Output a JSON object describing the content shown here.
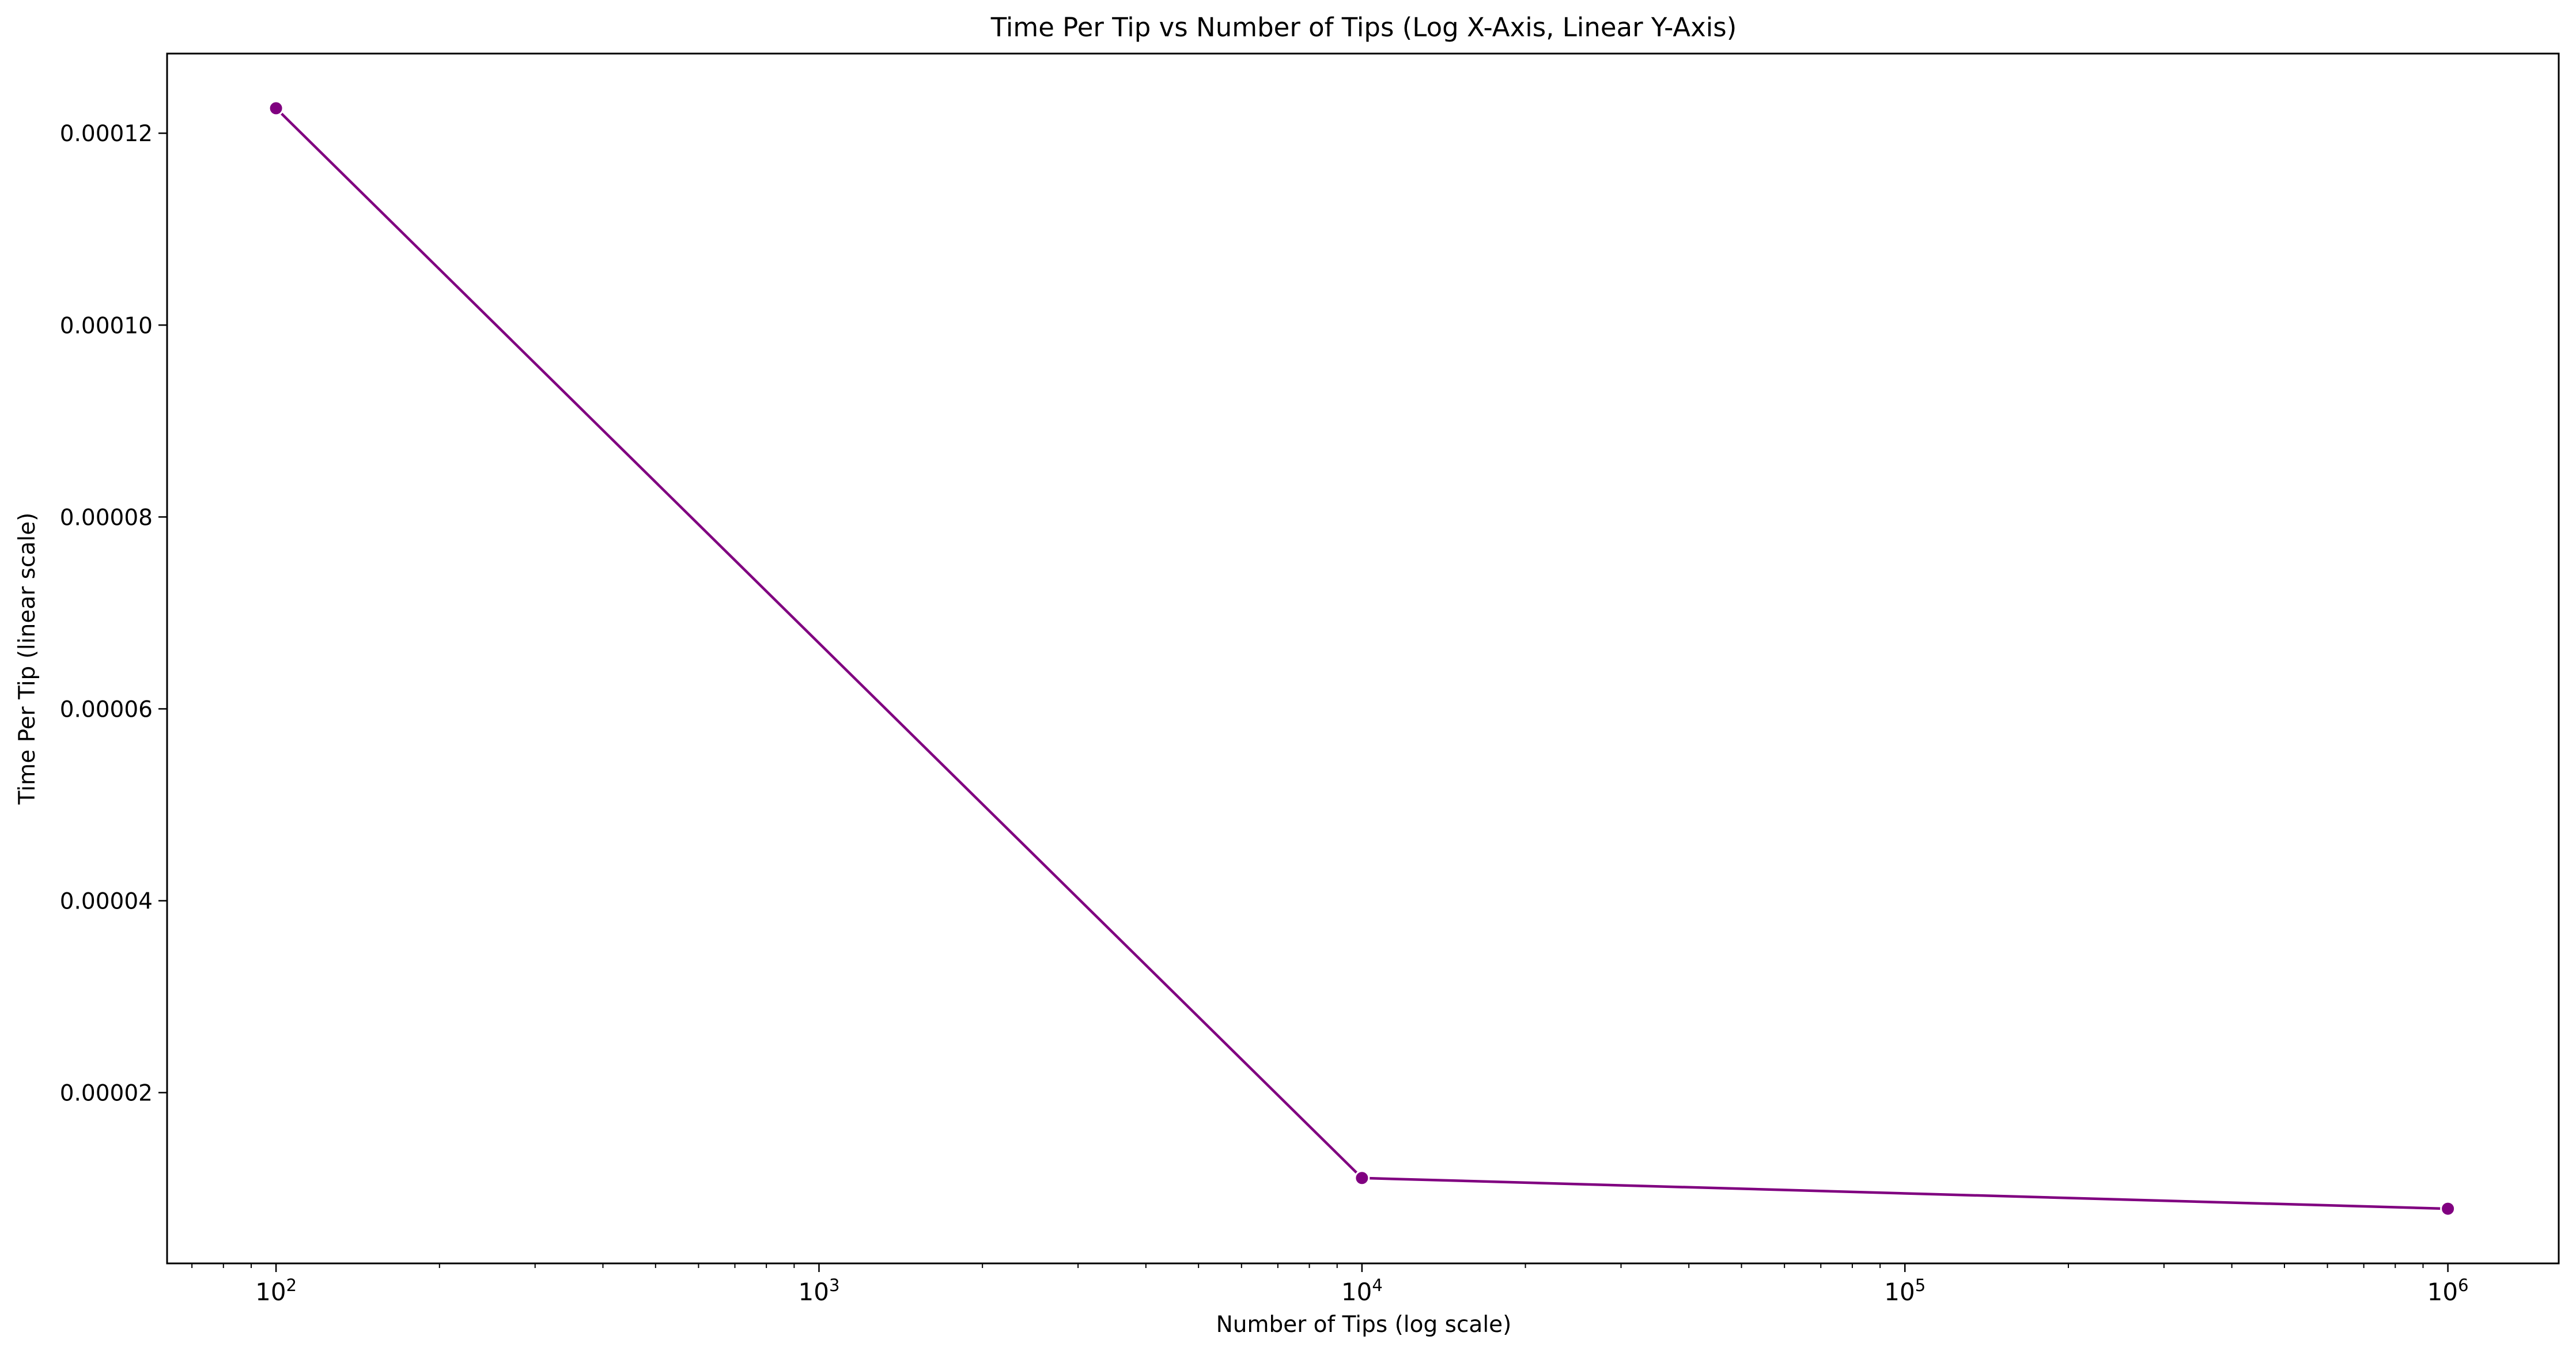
{
  "chart_data": {
    "type": "line",
    "title": "Time Per Tip vs Number of Tips (Log X-Axis, Linear Y-Axis)",
    "xlabel": "Number of Tips (log scale)",
    "ylabel": "Time Per Tip (linear scale)",
    "xscale": "log",
    "yscale": "linear",
    "xlim": [
      63,
      1600000
    ],
    "ylim": [
      2.2e-06,
      0.0001283
    ],
    "grid": false,
    "legend": "none",
    "x_ticks": [
      {
        "value": 100,
        "base": "10",
        "exp": "2"
      },
      {
        "value": 1000,
        "base": "10",
        "exp": "3"
      },
      {
        "value": 10000,
        "base": "10",
        "exp": "4"
      },
      {
        "value": 100000,
        "base": "10",
        "exp": "5"
      },
      {
        "value": 1000000,
        "base": "10",
        "exp": "6"
      }
    ],
    "y_ticks": [
      {
        "value": 2e-05,
        "label": "0.00002"
      },
      {
        "value": 4e-05,
        "label": "0.00004"
      },
      {
        "value": 6e-05,
        "label": "0.00006"
      },
      {
        "value": 8e-05,
        "label": "0.00008"
      },
      {
        "value": 0.0001,
        "label": "0.00010"
      },
      {
        "value": 0.00012,
        "label": "0.00012"
      }
    ],
    "series": [
      {
        "color": "#800080",
        "marker": "circle",
        "x": [
          100,
          10000,
          1000000
        ],
        "y": [
          0.0001226,
          1.11e-05,
          7.9e-06
        ]
      }
    ]
  }
}
